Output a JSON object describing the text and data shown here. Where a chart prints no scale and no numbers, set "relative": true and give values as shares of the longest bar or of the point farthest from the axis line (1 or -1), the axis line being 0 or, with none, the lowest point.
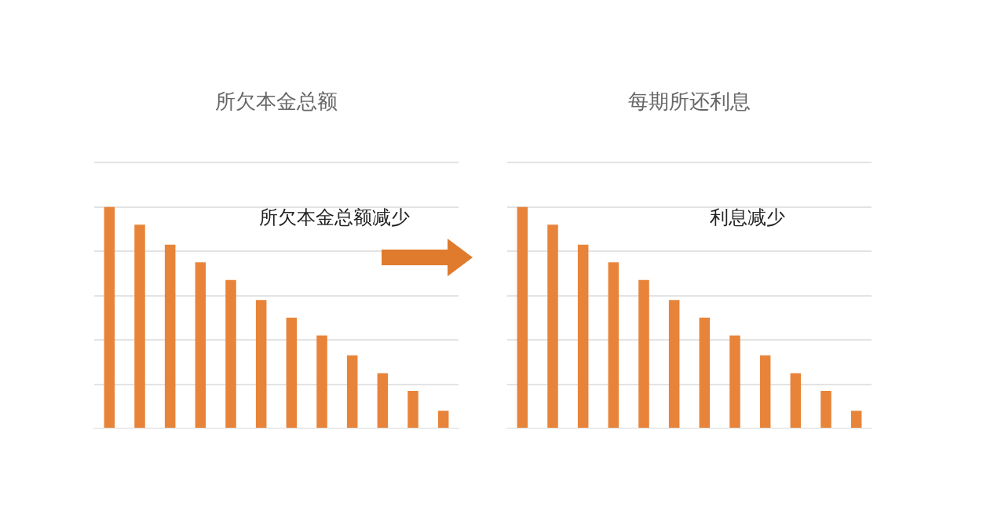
{
  "chart_data": [
    {
      "type": "bar",
      "title": "所欠本金总额",
      "categories": [
        null,
        null,
        null,
        null,
        null,
        null,
        null,
        null,
        null,
        null,
        null,
        null
      ],
      "values": [
        1,
        0.92,
        0.83,
        0.75,
        0.67,
        0.58,
        0.5,
        0.42,
        0.33,
        0.25,
        0.17,
        0.08
      ],
      "color": "#e8843a",
      "relative": true,
      "grid": "y",
      "annotations": [
        "所欠本金总额减少"
      ]
    },
    {
      "type": "bar",
      "title": "每期所还利息",
      "categories": [
        null,
        null,
        null,
        null,
        null,
        null,
        null,
        null,
        null,
        null,
        null,
        null
      ],
      "values": [
        1,
        0.92,
        0.83,
        0.75,
        0.67,
        0.58,
        0.5,
        0.42,
        0.33,
        0.25,
        0.17,
        0.08
      ],
      "color": "#e8843a",
      "relative": true,
      "grid": "y",
      "annotations": [
        "利息减少"
      ]
    }
  ]
}
